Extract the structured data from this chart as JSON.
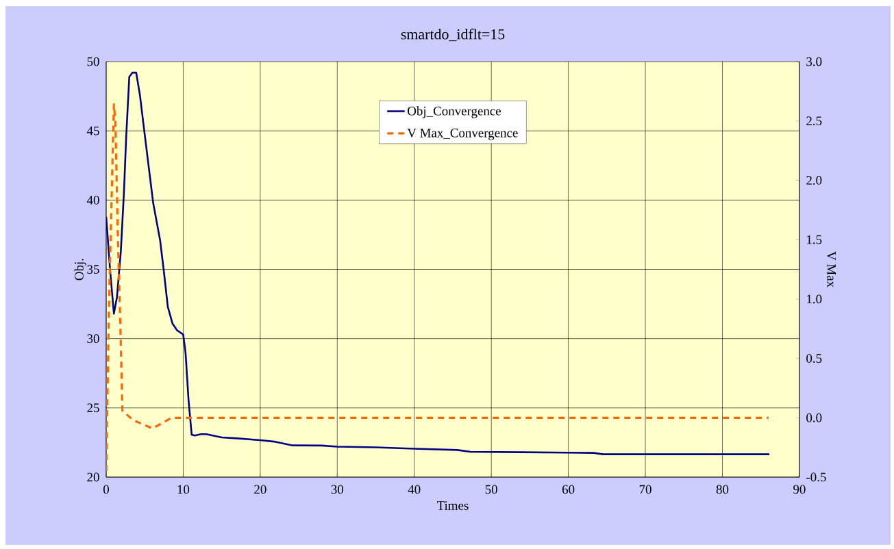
{
  "chart_data": {
    "type": "line",
    "title": "smartdo_idflt=15",
    "xlabel": "Times",
    "ylabel": "Obj.",
    "y2label": "V Max",
    "xlim": [
      0,
      90
    ],
    "xticks": [
      0,
      10,
      20,
      30,
      40,
      50,
      60,
      70,
      80,
      90
    ],
    "ylim": [
      20,
      50
    ],
    "yticks": [
      20,
      25,
      30,
      35,
      40,
      45,
      50
    ],
    "y2lim": [
      -0.5,
      3.0
    ],
    "y2ticks": [
      {
        "value": -0.5,
        "label": "-0.5"
      },
      {
        "value": 0,
        "label": "0.0"
      },
      {
        "value": 0.5,
        "label": "0.5"
      },
      {
        "value": 1,
        "label": "1.0"
      },
      {
        "value": 1.5,
        "label": "1.5"
      },
      {
        "value": 2,
        "label": "2.0"
      },
      {
        "value": 2.5,
        "label": "2.5"
      },
      {
        "value": 3,
        "label": "3.0"
      }
    ],
    "grid": true,
    "legend": "top",
    "series": [
      {
        "name": "Obj_Convergence",
        "color": "#000080",
        "line_style": "solid",
        "x": [
          0,
          0.5,
          1.0,
          1.4,
          1.9,
          2.3,
          2.6,
          3.0,
          3.4,
          3.9,
          4.4,
          4.9,
          5.5,
          6.1,
          7.0,
          7.5,
          8.0,
          8.6,
          9.2,
          10.0,
          10.3,
          10.7,
          11.1,
          11.5,
          12.3,
          13,
          15,
          17,
          20,
          22,
          24.2,
          28,
          30,
          35,
          40,
          45.6,
          47.3,
          53.8,
          60,
          63.3,
          64.5,
          86.1
        ],
        "values": [
          38.8,
          35.0,
          31.8,
          33.0,
          36.3,
          40.5,
          44.6,
          48.9,
          49.2,
          49.2,
          47.5,
          45.2,
          42.5,
          39.8,
          37.1,
          34.8,
          32.3,
          31.1,
          30.6,
          30.3,
          29.0,
          25.5,
          23.06,
          23.0,
          23.1,
          23.1,
          22.87,
          22.8,
          22.67,
          22.55,
          22.29,
          22.28,
          22.2,
          22.15,
          22.05,
          21.96,
          21.83,
          21.8,
          21.77,
          21.75,
          21.65,
          21.65
        ]
      },
      {
        "name": "V Max_Convergence",
        "color": "#ff6600",
        "line_style": "dashed",
        "axis": "y2",
        "x": [
          0,
          0.37,
          1.0,
          1.2,
          1.5,
          1.85,
          2.1,
          3.5,
          6.0,
          8.5,
          10,
          86
        ],
        "values": [
          -0.45,
          0.98,
          2.64,
          2.48,
          1.56,
          0.75,
          0.06,
          -0.02,
          -0.09,
          0.0,
          0.0,
          0.0
        ]
      }
    ]
  }
}
